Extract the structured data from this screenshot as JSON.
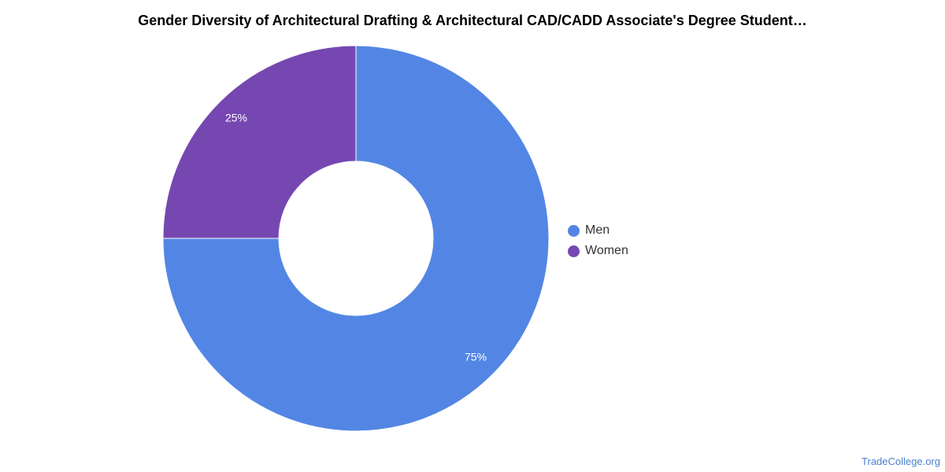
{
  "chart_data": {
    "type": "pie",
    "title": "Gender Diversity of Architectural Drafting & Architectural CAD/CADD Associate's Degree Student…",
    "categories": [
      "Men",
      "Women"
    ],
    "values": [
      75,
      25
    ],
    "data_labels": [
      "75%",
      "25%"
    ],
    "colors": [
      "#5386e4",
      "#7647b1"
    ],
    "donut": true,
    "legend_placement": "right"
  },
  "source": "TradeCollege.org"
}
